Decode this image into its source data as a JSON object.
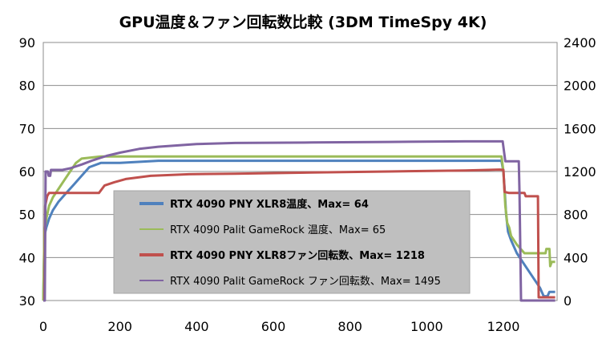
{
  "chart_data": {
    "type": "line",
    "title": "GPU温度＆ファン回転数比較 (3DM TimeSpy 4K)",
    "x_ticks": [
      0,
      200,
      400,
      600,
      800,
      1000,
      1200
    ],
    "xlim": [
      0,
      1340
    ],
    "y_left_ticks": [
      30,
      40,
      50,
      60,
      70,
      80,
      90
    ],
    "y_left_lim": [
      30,
      90
    ],
    "y_right_ticks": [
      0,
      400,
      800,
      1200,
      1600,
      2000,
      2400
    ],
    "y_right_lim": [
      0,
      2400
    ],
    "grid": "horizontal",
    "legend_position": "center-left",
    "series": [
      {
        "name": "RTX 4090 PNY XLR8温度、Max= 64",
        "legend_bold": true,
        "axis": "left",
        "color": "#4f81bd",
        "points": [
          [
            0,
            30
          ],
          [
            3,
            45
          ],
          [
            8,
            47
          ],
          [
            15,
            49
          ],
          [
            25,
            51
          ],
          [
            40,
            53
          ],
          [
            60,
            55
          ],
          [
            80,
            57
          ],
          [
            100,
            59
          ],
          [
            120,
            61
          ],
          [
            150,
            62
          ],
          [
            200,
            62
          ],
          [
            300,
            62.5
          ],
          [
            500,
            62.5
          ],
          [
            700,
            62.5
          ],
          [
            900,
            62.5
          ],
          [
            1100,
            62.5
          ],
          [
            1195,
            62.5
          ],
          [
            1200,
            60
          ],
          [
            1203,
            56
          ],
          [
            1207,
            50
          ],
          [
            1212,
            46
          ],
          [
            1220,
            44
          ],
          [
            1235,
            41
          ],
          [
            1250,
            39
          ],
          [
            1265,
            37
          ],
          [
            1280,
            35
          ],
          [
            1295,
            33
          ],
          [
            1305,
            31
          ],
          [
            1315,
            31
          ],
          [
            1320,
            32
          ],
          [
            1335,
            32
          ]
        ]
      },
      {
        "name": "RTX 4090 Palit GameRock 温度、Max= 65",
        "legend_bold": false,
        "axis": "left",
        "color": "#9bbb59",
        "points": [
          [
            0,
            30
          ],
          [
            3,
            46
          ],
          [
            8,
            49
          ],
          [
            15,
            52
          ],
          [
            25,
            54
          ],
          [
            40,
            56
          ],
          [
            55,
            58
          ],
          [
            70,
            60
          ],
          [
            85,
            62
          ],
          [
            100,
            63
          ],
          [
            150,
            63.5
          ],
          [
            300,
            63.5
          ],
          [
            500,
            63.5
          ],
          [
            700,
            63.5
          ],
          [
            900,
            63.5
          ],
          [
            1100,
            63.5
          ],
          [
            1195,
            63.5
          ],
          [
            1200,
            60
          ],
          [
            1205,
            52
          ],
          [
            1210,
            48
          ],
          [
            1215,
            47
          ],
          [
            1220,
            45
          ],
          [
            1235,
            43
          ],
          [
            1245,
            42
          ],
          [
            1255,
            41
          ],
          [
            1275,
            41
          ],
          [
            1300,
            41
          ],
          [
            1310,
            41
          ],
          [
            1312,
            42
          ],
          [
            1320,
            42
          ],
          [
            1322,
            38
          ],
          [
            1326,
            39
          ],
          [
            1335,
            39
          ]
        ]
      },
      {
        "name": "RTX 4090 PNY XLR8ファン回転数、Max= 1218",
        "legend_bold": true,
        "axis": "right",
        "color": "#c0504d",
        "points": [
          [
            0,
            0
          ],
          [
            3,
            0
          ],
          [
            5,
            880
          ],
          [
            10,
            970
          ],
          [
            15,
            1000
          ],
          [
            145,
            1000
          ],
          [
            160,
            1070
          ],
          [
            185,
            1100
          ],
          [
            215,
            1130
          ],
          [
            280,
            1160
          ],
          [
            380,
            1175
          ],
          [
            500,
            1180
          ],
          [
            700,
            1190
          ],
          [
            900,
            1200
          ],
          [
            1100,
            1210
          ],
          [
            1190,
            1218
          ],
          [
            1200,
            1215
          ],
          [
            1203,
            1010
          ],
          [
            1215,
            1000
          ],
          [
            1255,
            1000
          ],
          [
            1258,
            970
          ],
          [
            1290,
            970
          ],
          [
            1292,
            30
          ],
          [
            1335,
            30
          ]
        ]
      },
      {
        "name": "RTX 4090 Palit GameRock ファン回転数、Max= 1495",
        "legend_bold": false,
        "axis": "right",
        "color": "#8064a2",
        "points": [
          [
            0,
            0
          ],
          [
            4,
            0
          ],
          [
            6,
            1200
          ],
          [
            12,
            1200
          ],
          [
            14,
            1160
          ],
          [
            18,
            1160
          ],
          [
            20,
            1215
          ],
          [
            50,
            1215
          ],
          [
            70,
            1230
          ],
          [
            100,
            1265
          ],
          [
            130,
            1305
          ],
          [
            165,
            1345
          ],
          [
            200,
            1375
          ],
          [
            250,
            1410
          ],
          [
            300,
            1430
          ],
          [
            400,
            1455
          ],
          [
            500,
            1465
          ],
          [
            700,
            1470
          ],
          [
            900,
            1475
          ],
          [
            1100,
            1480
          ],
          [
            1190,
            1480
          ],
          [
            1198,
            1480
          ],
          [
            1205,
            1295
          ],
          [
            1240,
            1295
          ],
          [
            1242,
            1000
          ],
          [
            1246,
            0
          ],
          [
            1335,
            0
          ]
        ]
      }
    ]
  }
}
